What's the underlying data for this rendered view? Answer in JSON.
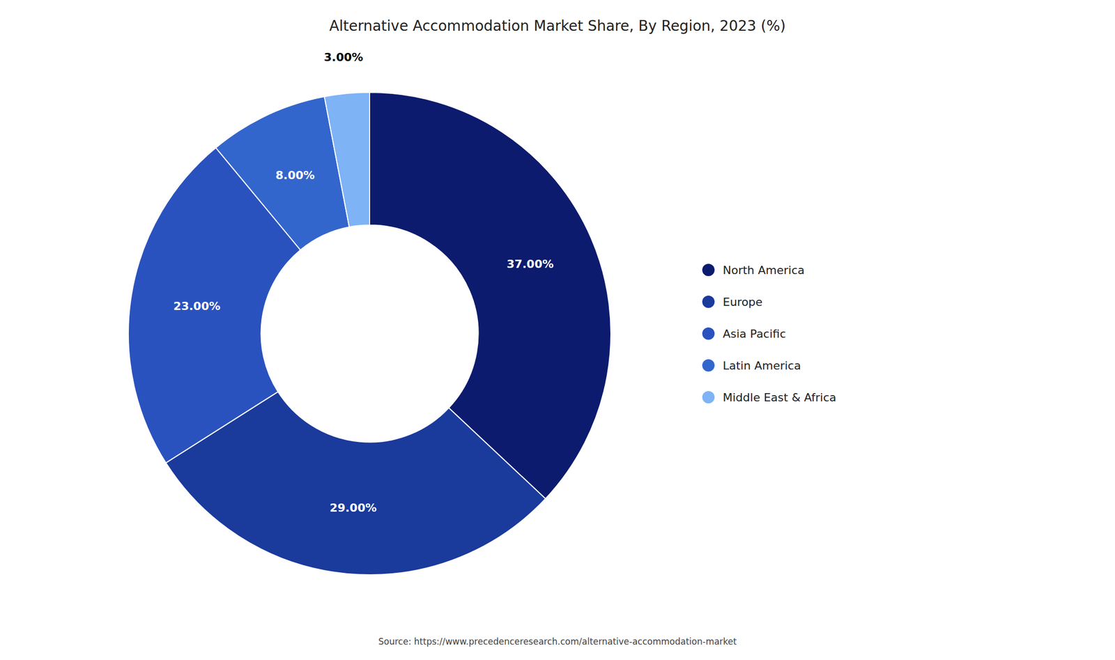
{
  "chart_data": {
    "type": "donut",
    "title": "Alternative Accommodation Market Share, By Region, 2023 (%)",
    "categories": [
      "North America",
      "Europe",
      "Asia Pacific",
      "Latin America",
      "Middle East & Africa"
    ],
    "values": [
      37.0,
      29.0,
      23.0,
      8.0,
      3.0
    ],
    "value_labels": [
      "37.00%",
      "29.00%",
      "23.00%",
      "8.00%",
      "3.00%"
    ],
    "data_labels": true,
    "colors": [
      "#0d1b6e",
      "#1a3a9c",
      "#2a52be",
      "#3366cc",
      "#7eb3f5"
    ],
    "legend": "right",
    "annotations": [
      "Source: https://www.precedenceresearch.com/alternative-accommodation-market"
    ]
  }
}
